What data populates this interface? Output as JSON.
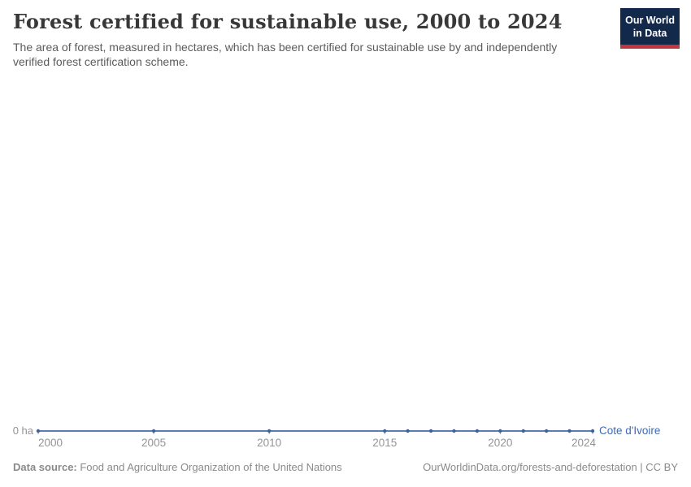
{
  "header": {
    "title": "Forest certified for sustainable use, 2000 to 2024",
    "subtitle": "The area of forest, measured in hectares, which has been certified for sustainable use by and independently verified forest certification scheme."
  },
  "logo": {
    "line1": "Our World",
    "line2": "in Data",
    "bg_color": "#12294b",
    "accent_color": "#c0363c"
  },
  "chart_data": {
    "type": "line",
    "title": "Forest certified for sustainable use, 2000 to 2024",
    "x": [
      2000,
      2005,
      2010,
      2015,
      2016,
      2017,
      2018,
      2019,
      2020,
      2021,
      2022,
      2023,
      2024
    ],
    "series": [
      {
        "name": "Cote d'Ivoire",
        "values": [
          0,
          0,
          0,
          0,
          0,
          0,
          0,
          0,
          0,
          0,
          0,
          0,
          0
        ]
      }
    ],
    "x_ticks": [
      2000,
      2005,
      2010,
      2015,
      2020,
      2024
    ],
    "xlim": [
      2000,
      2024
    ],
    "ylim": [
      0,
      0
    ],
    "y_axis_tick_label": "0 ha",
    "unit": "ha",
    "grid": false,
    "legend_position": "right-of-line-end"
  },
  "entity_label": "Cote d'Ivoire",
  "footer": {
    "source_label": "Data source:",
    "source_text": " Food and Agriculture Organization of the United Nations",
    "credit": "OurWorldinData.org/forests-and-deforestation | CC BY"
  },
  "colors": {
    "line": "#5b7db3",
    "point": "#3d639f",
    "axis_text": "#949494",
    "entity_label": "#3d6bb5",
    "title_text": "#383838",
    "subtitle_text": "#5b5b5b",
    "footer_text": "#8a8a8a"
  }
}
